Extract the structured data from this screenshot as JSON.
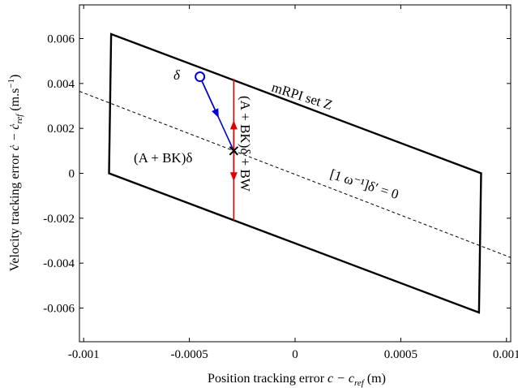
{
  "chart_data": {
    "type": "line",
    "title": "",
    "xlabel": "Position tracking error c − c_ref (m)",
    "xlabel_parts": {
      "text": "Position tracking error ",
      "expr": "c − c",
      "sub": "ref",
      "unit": " (m)"
    },
    "ylabel": "Velocity tracking error ċ − ċ_ref (m.s⁻¹)",
    "ylabel_parts": {
      "text": "Velocity tracking error ",
      "expr": "ċ − ċ",
      "sub": "ref",
      "unit_pre": "  (m.s",
      "unit_sup": "−1",
      "unit_post": ")"
    },
    "xlim": [
      -0.00102,
      0.00102
    ],
    "ylim": [
      -0.0075,
      0.0075
    ],
    "xticks": [
      -0.001,
      -0.0005,
      0,
      0.0005,
      0.001
    ],
    "xtick_labels": [
      "-0.001",
      "-0.0005",
      "0",
      "0.0005",
      "0.001"
    ],
    "yticks": [
      -0.006,
      -0.004,
      -0.002,
      0,
      0.002,
      0.004,
      0.006
    ],
    "ytick_labels": [
      "-0.006",
      "-0.004",
      "-0.002",
      "0",
      "0.002",
      "0.004",
      "0.006"
    ],
    "grid": false,
    "series": [
      {
        "kind": "polygon",
        "color": "#000000",
        "points": [
          [
            -0.00087,
            0.0062
          ],
          [
            0.00088,
            0.0
          ],
          [
            0.00087,
            -0.0062
          ],
          [
            -0.00088,
            0.0
          ]
        ]
      },
      {
        "kind": "dashed-line",
        "color": "#000000",
        "points": [
          [
            -0.00102,
            0.00365
          ],
          [
            0.00102,
            -0.00375
          ]
        ]
      },
      {
        "kind": "segment",
        "color": "#e00000",
        "points": [
          [
            -0.00029,
            0.0042
          ],
          [
            -0.00029,
            -0.0021
          ]
        ]
      },
      {
        "kind": "arrow",
        "color": "#0000d0",
        "points": [
          [
            -0.00045,
            0.0043
          ],
          [
            -0.00029,
            0.001
          ]
        ]
      }
    ],
    "markers": [
      {
        "kind": "circle",
        "color": "#0000d0",
        "x": -0.00045,
        "y": 0.0043
      },
      {
        "kind": "cross",
        "color": "#000000",
        "x": -0.00029,
        "y": 0.001
      }
    ],
    "annotations": {
      "delta": "δ",
      "set_label": "mRPI set Z",
      "akd": "(A + BK)δ",
      "akd_bw": "(A + BK)δ + BW",
      "constraint": "[1  ω⁻¹]δ′ = 0"
    }
  }
}
